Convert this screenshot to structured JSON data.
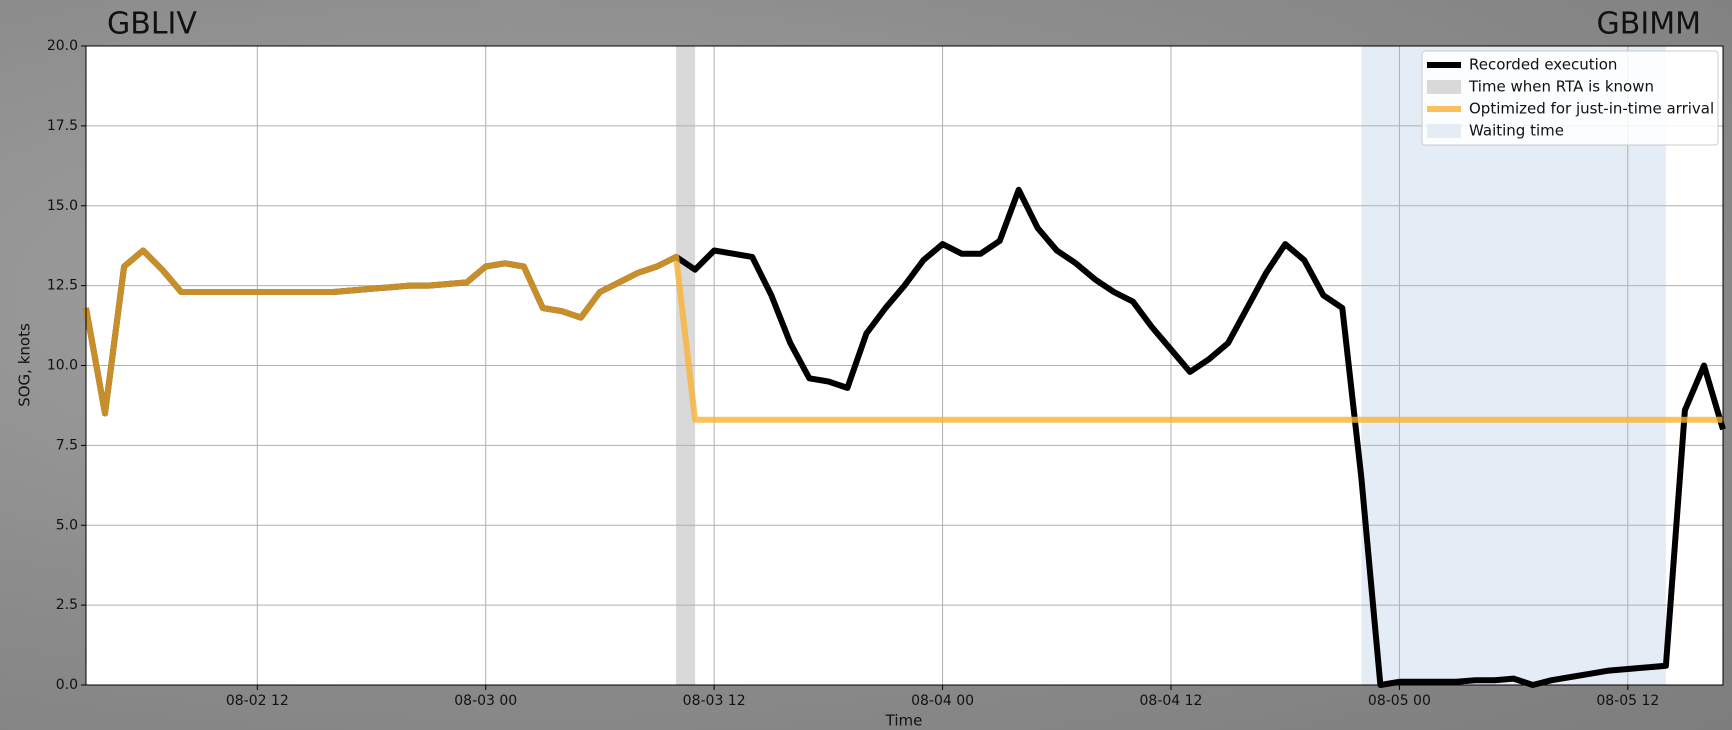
{
  "chart_data": {
    "type": "line",
    "left_label": "GBLIV",
    "right_label": "GBIMM",
    "x_label": "Time",
    "y_label": "SOG, knots",
    "x": [
      "08-02 03",
      "08-02 04",
      "08-02 05",
      "08-02 06",
      "08-02 07",
      "08-02 08",
      "08-02 09",
      "08-02 10",
      "08-02 11",
      "08-02 12",
      "08-02 13",
      "08-02 14",
      "08-02 15",
      "08-02 16",
      "08-02 17",
      "08-02 18",
      "08-02 19",
      "08-02 20",
      "08-02 21",
      "08-02 22",
      "08-02 23",
      "08-03 00",
      "08-03 01",
      "08-03 02",
      "08-03 03",
      "08-03 04",
      "08-03 05",
      "08-03 06",
      "08-03 07",
      "08-03 08",
      "08-03 09",
      "08-03 10",
      "08-03 11",
      "08-03 12",
      "08-03 13",
      "08-03 14",
      "08-03 15",
      "08-03 16",
      "08-03 17",
      "08-03 18",
      "08-03 19",
      "08-03 20",
      "08-03 21",
      "08-03 22",
      "08-03 23",
      "08-04 00",
      "08-04 01",
      "08-04 02",
      "08-04 03",
      "08-04 04",
      "08-04 05",
      "08-04 06",
      "08-04 07",
      "08-04 08",
      "08-04 09",
      "08-04 10",
      "08-04 11",
      "08-04 12",
      "08-04 13",
      "08-04 14",
      "08-04 15",
      "08-04 16",
      "08-04 17",
      "08-04 18",
      "08-04 19",
      "08-04 20",
      "08-04 21",
      "08-04 22",
      "08-04 23",
      "08-05 00",
      "08-05 01",
      "08-05 02",
      "08-05 03",
      "08-05 04",
      "08-05 05",
      "08-05 06",
      "08-05 07",
      "08-05 08",
      "08-05 09",
      "08-05 10",
      "08-05 11",
      "08-05 12",
      "08-05 13",
      "08-05 14",
      "08-05 15",
      "08-05 16",
      "08-05 17"
    ],
    "series": [
      {
        "name": "Recorded execution",
        "color": "#000000",
        "opacity": 1,
        "values": [
          11.8,
          8.5,
          13.1,
          13.6,
          13.0,
          12.3,
          12.3,
          12.3,
          12.3,
          12.3,
          12.3,
          12.3,
          12.3,
          12.3,
          12.35,
          12.4,
          12.45,
          12.5,
          12.5,
          12.55,
          12.6,
          13.1,
          13.2,
          13.1,
          11.8,
          11.7,
          11.5,
          12.3,
          12.6,
          12.9,
          13.1,
          13.4,
          13.0,
          13.6,
          13.5,
          13.4,
          12.2,
          10.7,
          9.6,
          9.5,
          9.3,
          11.0,
          11.8,
          12.5,
          13.3,
          13.8,
          13.5,
          13.5,
          13.9,
          15.5,
          14.3,
          13.6,
          13.2,
          12.7,
          12.3,
          12.0,
          11.2,
          10.5,
          9.8,
          10.2,
          10.7,
          11.8,
          12.9,
          13.8,
          13.3,
          12.2,
          11.8,
          6.5,
          0.0,
          0.1,
          0.1,
          0.1,
          0.1,
          0.15,
          0.15,
          0.2,
          0.0,
          0.15,
          0.25,
          0.35,
          0.45,
          0.5,
          0.55,
          0.6,
          8.6,
          10.0,
          8.0
        ]
      },
      {
        "name": "Optimized for just-in-time arrival",
        "color": "#f9b234",
        "opacity": 0.8,
        "values": [
          11.8,
          8.5,
          13.1,
          13.6,
          13.0,
          12.3,
          12.3,
          12.3,
          12.3,
          12.3,
          12.3,
          12.3,
          12.3,
          12.3,
          12.35,
          12.4,
          12.45,
          12.5,
          12.5,
          12.55,
          12.6,
          13.1,
          13.2,
          13.1,
          11.8,
          11.7,
          11.5,
          12.3,
          12.6,
          12.9,
          13.1,
          13.4,
          8.3,
          8.3,
          8.3,
          8.3,
          8.3,
          8.3,
          8.3,
          8.3,
          8.3,
          8.3,
          8.3,
          8.3,
          8.3,
          8.3,
          8.3,
          8.3,
          8.3,
          8.3,
          8.3,
          8.3,
          8.3,
          8.3,
          8.3,
          8.3,
          8.3,
          8.3,
          8.3,
          8.3,
          8.3,
          8.3,
          8.3,
          8.3,
          8.3,
          8.3,
          8.3,
          8.3,
          8.3,
          8.3,
          8.3,
          8.3,
          8.3,
          8.3,
          8.3,
          8.3,
          8.3,
          8.3,
          8.3,
          8.3,
          8.3,
          8.3,
          8.3,
          8.3,
          8.3,
          8.3,
          8.3
        ]
      }
    ],
    "bands": [
      {
        "name": "Time when RTA is known",
        "color": "#d9d9d9",
        "start": "08-03 10",
        "end": "08-03 11"
      },
      {
        "name": "Waiting time",
        "color": "#e4edf6",
        "start": "08-04 22",
        "end": "08-05 14"
      }
    ],
    "xlim": [
      "08-02 03",
      "08-05 17"
    ],
    "xticks": [
      "08-02 12",
      "08-03 00",
      "08-03 12",
      "08-04 00",
      "08-04 12",
      "08-05 00",
      "08-05 12"
    ],
    "ylim": [
      0,
      20
    ],
    "yticks": [
      {
        "value": 0,
        "label": "0.0"
      },
      2.5,
      {
        "value": 5,
        "label": "5.0"
      },
      7.5,
      {
        "value": 10,
        "label": "10.0"
      },
      12.5,
      {
        "value": 15,
        "label": "15.0"
      },
      17.5,
      {
        "value": 20,
        "label": "20.0"
      }
    ],
    "grid": true,
    "legend": "upper right"
  }
}
